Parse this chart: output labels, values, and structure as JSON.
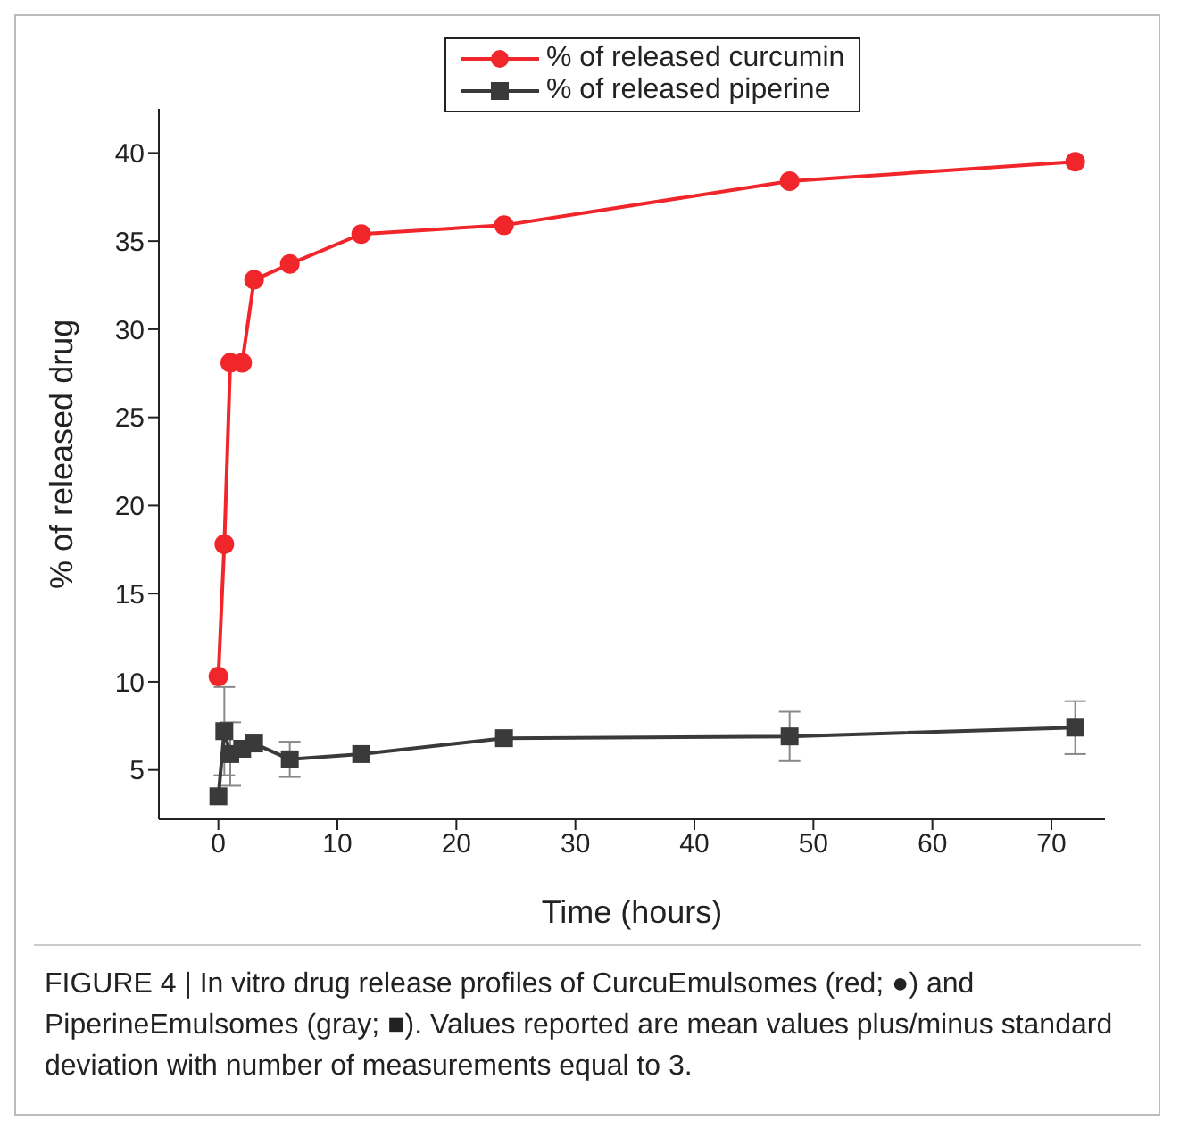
{
  "chart_data": {
    "type": "line",
    "xlabel": "Time (hours)",
    "ylabel": "% of released drug",
    "xlim": [
      -5,
      74.5
    ],
    "xticks": [
      0,
      10,
      20,
      30,
      40,
      50,
      60,
      70
    ],
    "ylim": [
      2.2,
      42.5
    ],
    "yticks": [
      5,
      10,
      15,
      20,
      25,
      30,
      35,
      40
    ],
    "legend": "top",
    "line_style": "solid",
    "series": [
      {
        "name": "% of released curcumin",
        "color": "#f0262b",
        "marker": "circle",
        "x": [
          0,
          0.5,
          1,
          2,
          3,
          6,
          12,
          24,
          48,
          72
        ],
        "values": [
          10.3,
          17.8,
          28.1,
          28.1,
          32.8,
          33.7,
          35.4,
          35.9,
          38.4,
          39.5
        ]
      },
      {
        "name": "% of released piperine",
        "color": "#3a3a3a",
        "marker": "square",
        "x": [
          0,
          0.5,
          1,
          2,
          3,
          6,
          12,
          24,
          48,
          72
        ],
        "values": [
          3.5,
          7.2,
          5.9,
          6.2,
          6.5,
          5.6,
          5.9,
          6.8,
          6.9,
          7.4
        ],
        "errors": [
          null,
          2.5,
          1.8,
          null,
          null,
          1.0,
          null,
          null,
          1.4,
          1.5
        ]
      }
    ],
    "annotations": [
      "FIGURE 4 | In vitro drug release profiles of CurcuEmulsomes (red; ●) and PiperineEmulsomes (gray; ■). Values reported are mean values plus/minus standard deviation with number of measurements equal to 3."
    ]
  }
}
